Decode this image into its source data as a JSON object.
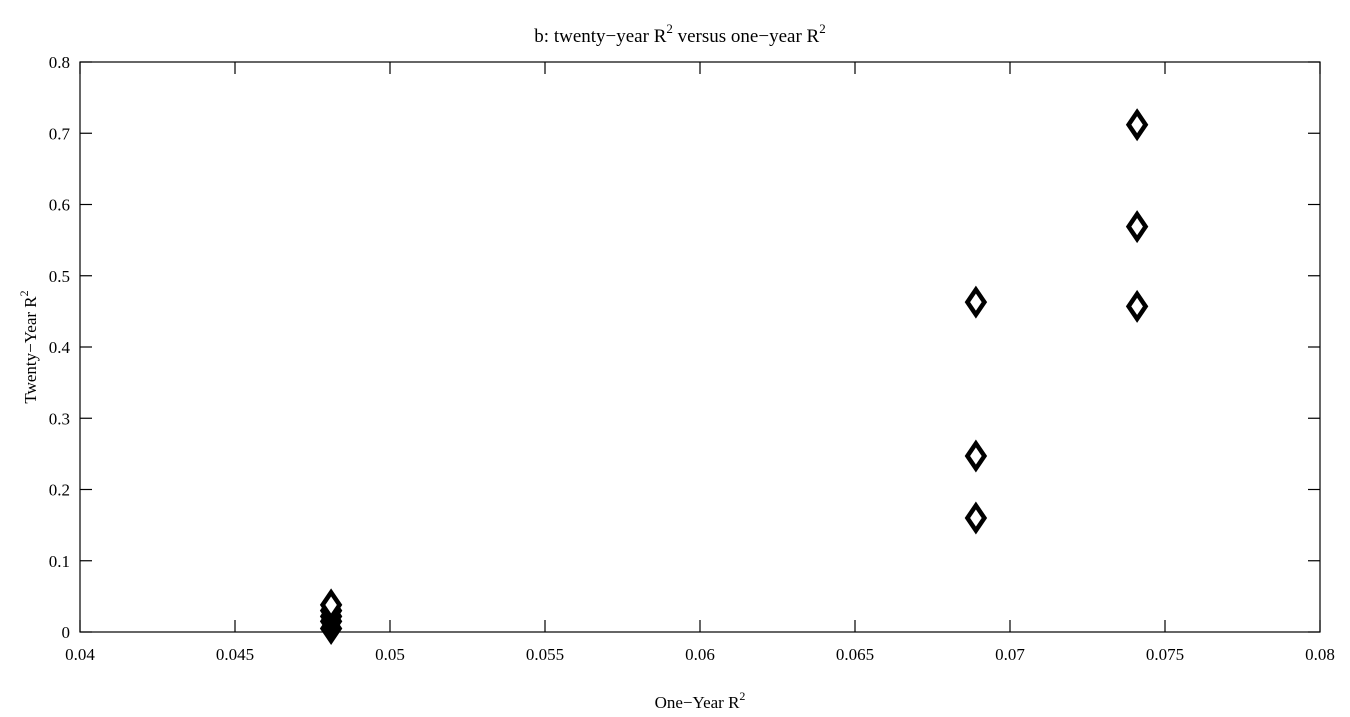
{
  "chart_data": {
    "type": "scatter",
    "title": {
      "main": "b: twenty−year R",
      "sup": "2",
      "mid": " versus one−year R",
      "sup2": "2"
    },
    "xlabel": {
      "main": "One−Year R",
      "sup": "2"
    },
    "ylabel": {
      "main": "Twenty−Year R",
      "sup": "2"
    },
    "xlim": [
      0.04,
      0.08
    ],
    "ylim": [
      0,
      0.8
    ],
    "xticks": [
      "0.04",
      "0.045",
      "0.05",
      "0.055",
      "0.06",
      "0.065",
      "0.07",
      "0.075",
      "0.08"
    ],
    "yticks": [
      "0",
      "0.1",
      "0.2",
      "0.3",
      "0.4",
      "0.5",
      "0.6",
      "0.7",
      "0.8"
    ],
    "grid": false,
    "marker": "diamond",
    "points": [
      {
        "x": 0.0481,
        "y": 0.005
      },
      {
        "x": 0.0481,
        "y": 0.015
      },
      {
        "x": 0.0481,
        "y": 0.022
      },
      {
        "x": 0.0481,
        "y": 0.03
      },
      {
        "x": 0.0481,
        "y": 0.038
      },
      {
        "x": 0.0689,
        "y": 0.16
      },
      {
        "x": 0.0689,
        "y": 0.247
      },
      {
        "x": 0.0689,
        "y": 0.463
      },
      {
        "x": 0.0741,
        "y": 0.457
      },
      {
        "x": 0.0741,
        "y": 0.569
      },
      {
        "x": 0.0741,
        "y": 0.712
      }
    ]
  }
}
